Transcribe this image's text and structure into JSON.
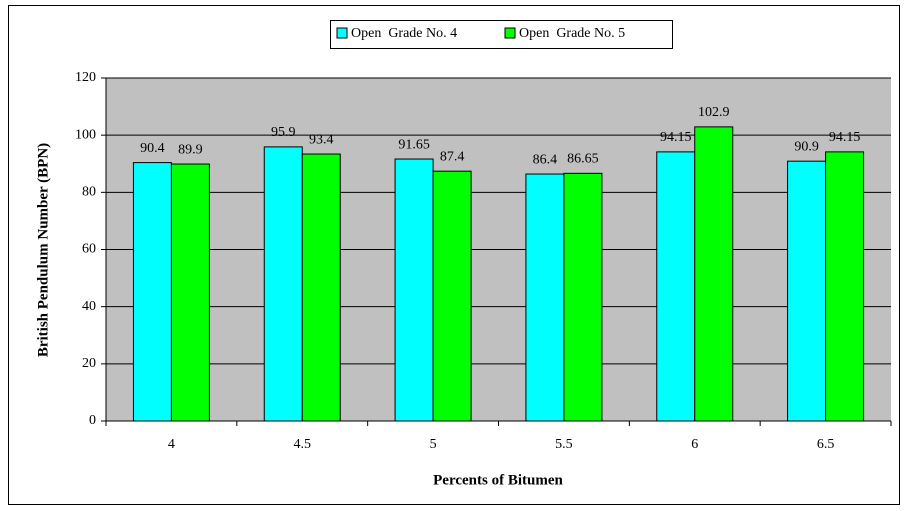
{
  "chart_data": {
    "type": "bar",
    "x_label": "Percents of Bitumen",
    "y_label": "British Pendulum Number (BPN)",
    "categories": [
      "4",
      "4.5",
      "5",
      "5.5",
      "6",
      "6.5"
    ],
    "series": [
      {
        "name": "Open  Grade No. 4",
        "color": "#00ffff",
        "values": [
          90.4,
          95.9,
          91.65,
          86.4,
          94.15,
          90.9
        ]
      },
      {
        "name": "Open  Grade No. 5",
        "color": "#00ff00",
        "values": [
          89.9,
          93.4,
          87.4,
          86.65,
          102.9,
          94.15
        ]
      }
    ],
    "ylim": [
      0,
      120
    ],
    "yticks": [
      0,
      20,
      40,
      60,
      80,
      100,
      120
    ],
    "grid": true,
    "legend": "top"
  }
}
